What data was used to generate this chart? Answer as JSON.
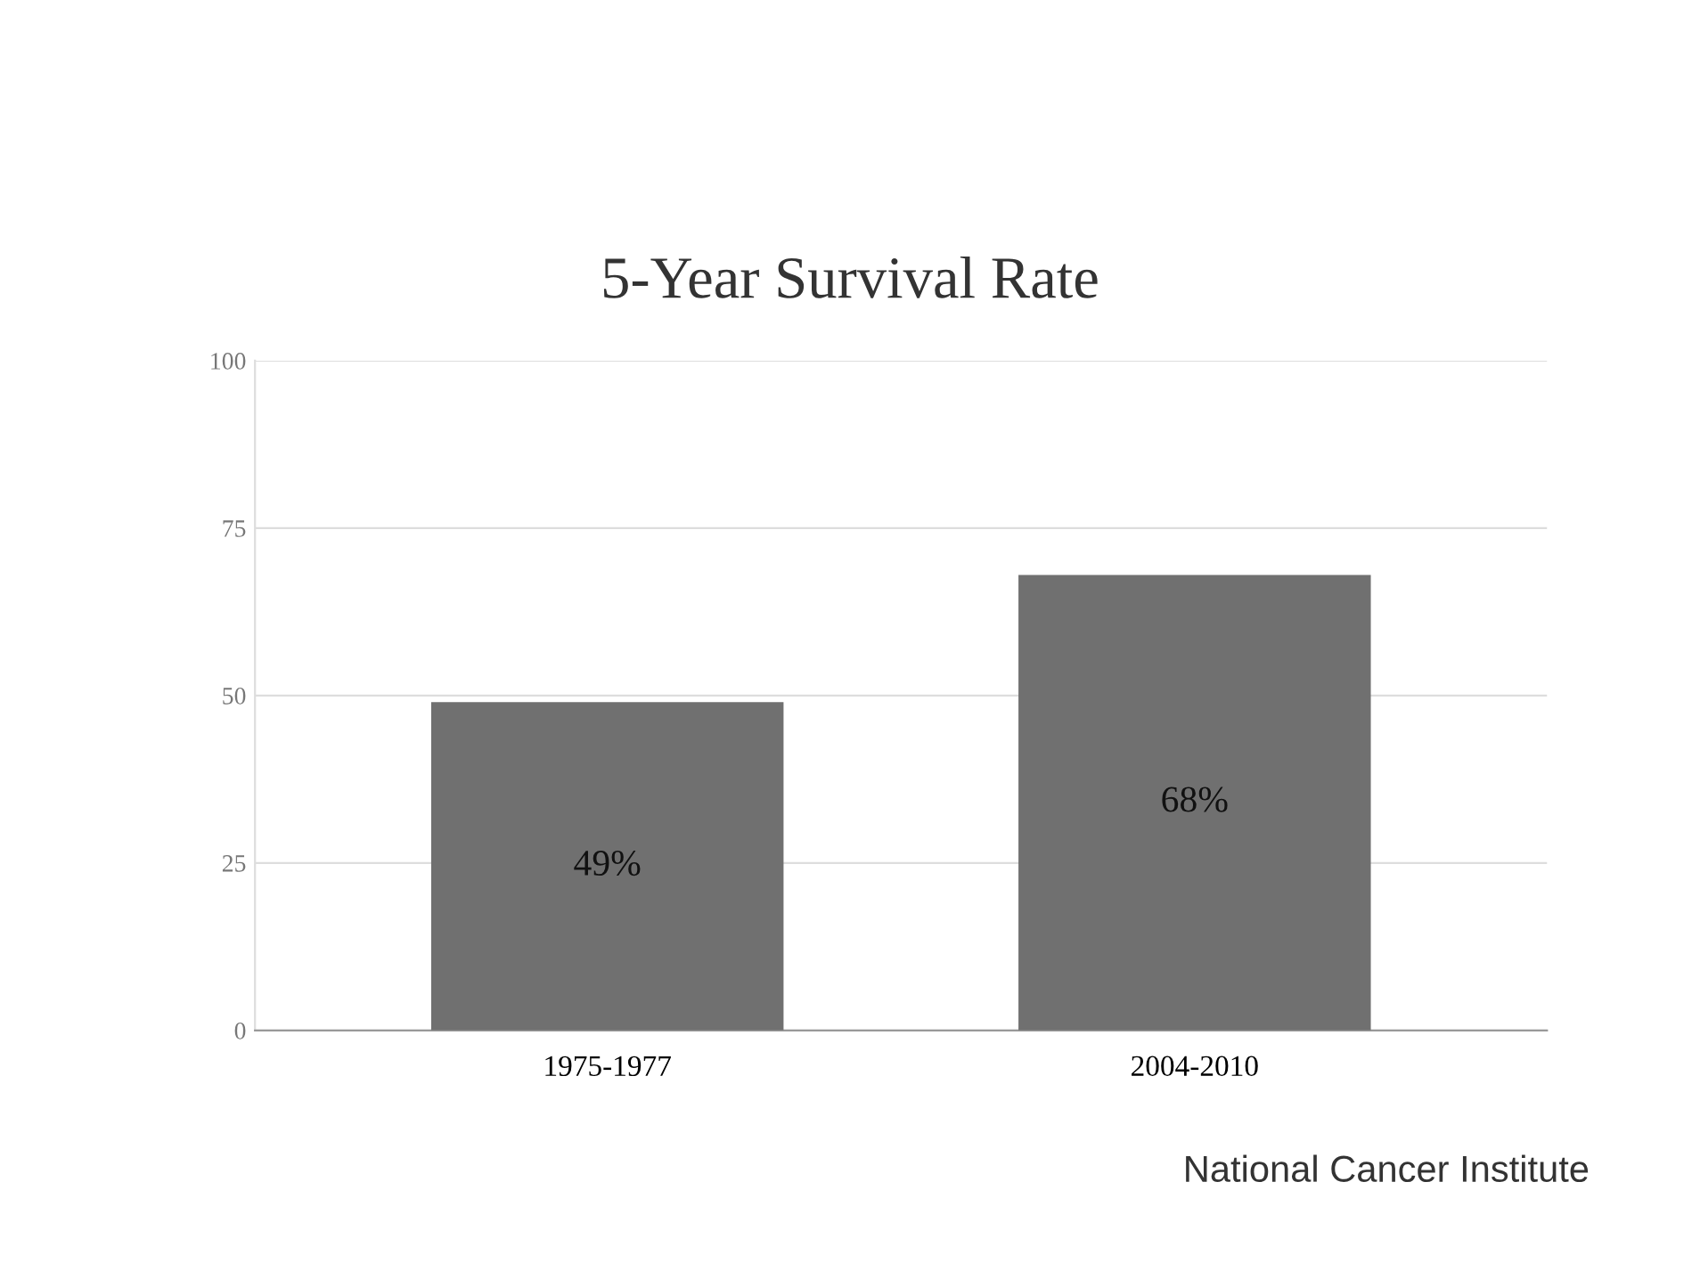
{
  "chart_data": {
    "type": "bar",
    "title": "5-Year Survival Rate",
    "categories": [
      "1975-1977",
      "2004-2010"
    ],
    "values": [
      49,
      68
    ],
    "value_labels": [
      "49%",
      "68%"
    ],
    "color": "#707070",
    "ylim": [
      0,
      100
    ],
    "yticks": [
      0,
      25,
      50,
      75,
      100
    ],
    "grid": "y",
    "annotations": [
      "National Cancer Institute"
    ]
  }
}
